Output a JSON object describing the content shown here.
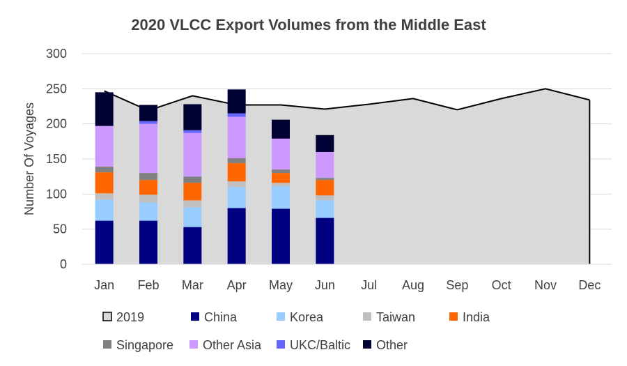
{
  "chart_data": {
    "type": "bar",
    "title": "2020 VLCC Export Volumes from the Middle East",
    "xlabel": "",
    "ylabel": "Number Of Voyages",
    "ylim": [
      0,
      300
    ],
    "yticks": [
      "0",
      "50",
      "100",
      "150",
      "200",
      "250",
      "300"
    ],
    "grid": true,
    "legend_position": "bottom",
    "categories": [
      "Jan",
      "Feb",
      "Mar",
      "Apr",
      "May",
      "Jun",
      "Jul",
      "Aug",
      "Sep",
      "Oct",
      "Nov",
      "Dec"
    ],
    "area_series": {
      "name": "2019",
      "color": "#d9d9d9",
      "line_color": "#000000",
      "values": [
        247,
        219,
        240,
        227,
        227,
        221,
        228,
        236,
        220,
        236,
        250,
        234
      ]
    },
    "stacked_series": [
      {
        "name": "China",
        "color": "#000080",
        "values": [
          62,
          62,
          53,
          80,
          79,
          66
        ]
      },
      {
        "name": "Korea",
        "color": "#99ccff",
        "values": [
          30,
          26,
          28,
          30,
          32,
          25
        ]
      },
      {
        "name": "Taiwan",
        "color": "#c0c0c0",
        "values": [
          9,
          11,
          10,
          8,
          5,
          7
        ]
      },
      {
        "name": "India",
        "color": "#ff6600",
        "values": [
          30,
          21,
          25,
          26,
          14,
          22
        ]
      },
      {
        "name": "Singapore",
        "color": "#808080",
        "values": [
          8,
          10,
          9,
          7,
          5,
          3
        ]
      },
      {
        "name": "Other Asia",
        "color": "#cc99ff",
        "values": [
          58,
          70,
          62,
          59,
          44,
          37
        ]
      },
      {
        "name": "UKC/Baltic",
        "color": "#6666ff",
        "values": [
          0,
          4,
          4,
          5,
          0,
          0
        ]
      },
      {
        "name": "Other",
        "color": "#000033",
        "values": [
          48,
          23,
          37,
          34,
          27,
          24
        ]
      }
    ]
  }
}
